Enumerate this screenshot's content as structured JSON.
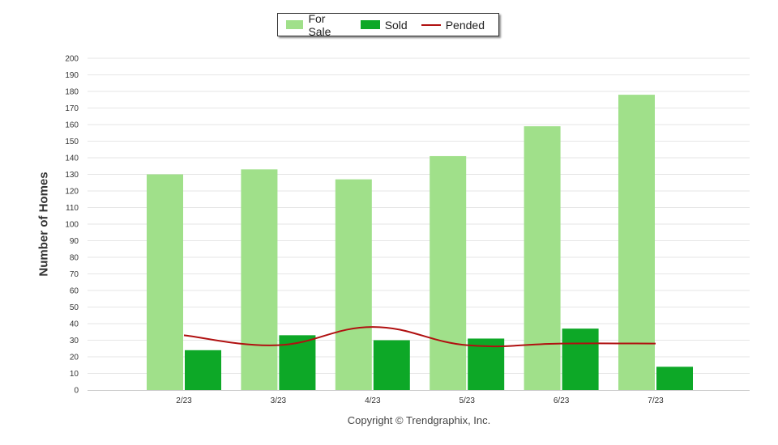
{
  "chart_data": {
    "type": "bar",
    "categories": [
      "2/23",
      "3/23",
      "4/23",
      "5/23",
      "6/23",
      "7/23"
    ],
    "series": [
      {
        "name": "For Sale",
        "type": "bar",
        "color": "#a0e08a",
        "values": [
          130,
          133,
          127,
          141,
          159,
          178
        ]
      },
      {
        "name": "Sold",
        "type": "bar",
        "color": "#0da827",
        "values": [
          24,
          33,
          30,
          31,
          37,
          14
        ]
      },
      {
        "name": "Pended",
        "type": "line",
        "color": "#b01010",
        "values": [
          33,
          27,
          38,
          27,
          28,
          28
        ]
      }
    ],
    "title": "",
    "xlabel": "",
    "ylabel": "Number of Homes",
    "ylim": [
      0,
      200
    ],
    "ytick_step": 10,
    "yticks": [
      "0",
      "10",
      "20",
      "30",
      "40",
      "50",
      "60",
      "70",
      "80",
      "90",
      "100",
      "110",
      "120",
      "130",
      "140",
      "150",
      "160",
      "170",
      "180",
      "190",
      "200"
    ],
    "grid": true,
    "legend_position": "top-center"
  },
  "footer": {
    "copyright": "Copyright © Trendgraphix, Inc."
  }
}
